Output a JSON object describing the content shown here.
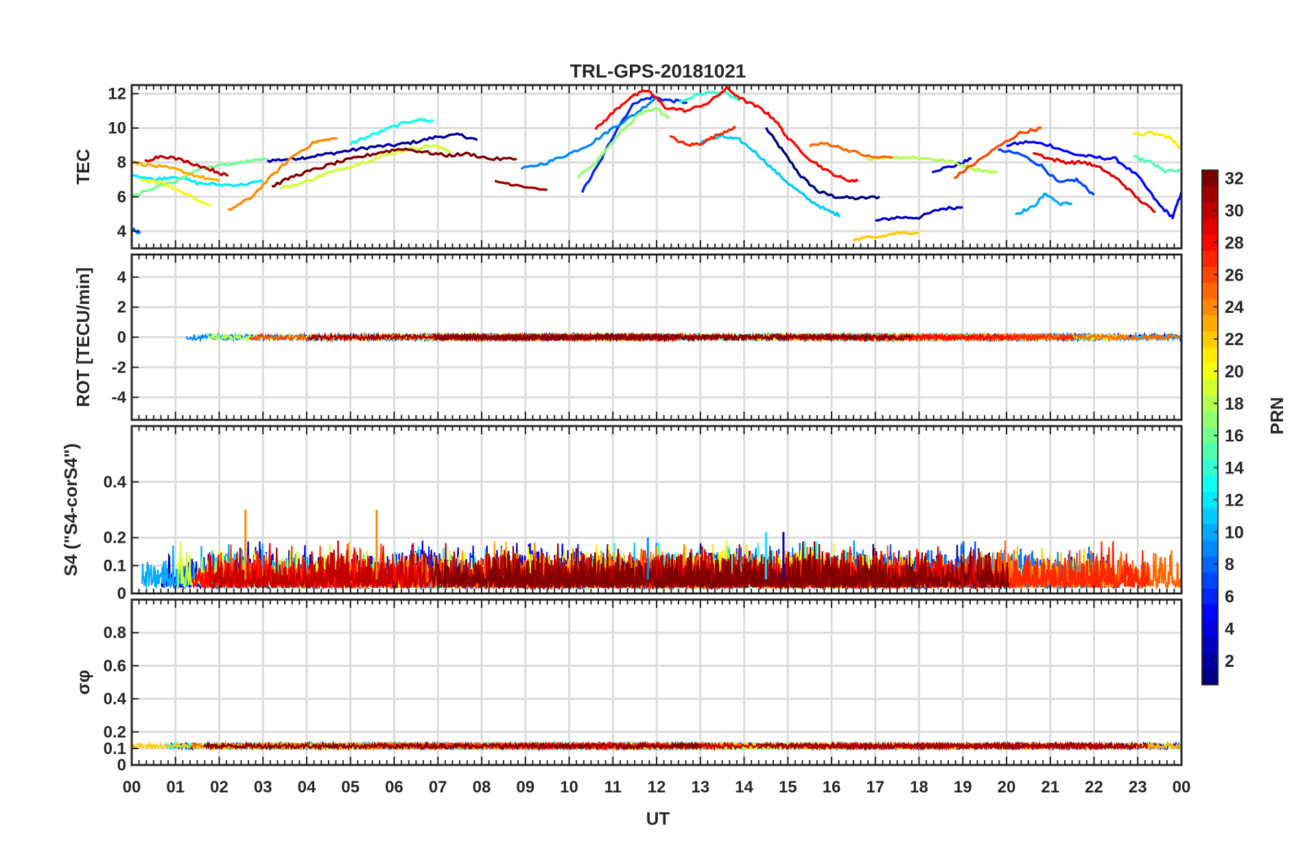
{
  "chart_data": {
    "type": "line",
    "title": "TRL-GPS-20181021",
    "xlabel": "UT",
    "x_ticks": [
      "00",
      "01",
      "02",
      "03",
      "04",
      "05",
      "06",
      "07",
      "08",
      "09",
      "10",
      "11",
      "12",
      "13",
      "14",
      "15",
      "16",
      "17",
      "18",
      "19",
      "20",
      "21",
      "22",
      "23",
      "00"
    ],
    "xlim": [
      0,
      24
    ],
    "grid": true,
    "colorbar": {
      "label": "PRN",
      "range": [
        1,
        32
      ],
      "ticks": [
        "2",
        "4",
        "6",
        "8",
        "10",
        "12",
        "14",
        "16",
        "18",
        "20",
        "22",
        "24",
        "26",
        "28",
        "30",
        "32"
      ],
      "colormap": "jet"
    },
    "panels": [
      {
        "name": "tec",
        "ylabel": "TEC",
        "ylim": [
          3,
          12.5
        ],
        "y_ticks": [
          "4",
          "6",
          "8",
          "10",
          "12"
        ],
        "series": [
          {
            "prn": 1,
            "x": [
              14.5,
              14.9,
              15.3,
              15.7,
              16.1,
              16.6,
              17.1
            ],
            "y": [
              10,
              8.6,
              7.2,
              6.3,
              6.0,
              5.9,
              6.0
            ]
          },
          {
            "prn": 2,
            "x": [
              3.1,
              3.6,
              4.0,
              4.5,
              5.0,
              5.5,
              6.0,
              6.5,
              7.0,
              7.5,
              7.9
            ],
            "y": [
              8.1,
              8.2,
              8.3,
              8.5,
              8.7,
              8.9,
              9.0,
              9.2,
              9.5,
              9.6,
              9.3
            ]
          },
          {
            "prn": 3,
            "x": [
              17.0,
              17.5,
              18.0,
              18.5,
              19.0
            ],
            "y": [
              4.6,
              4.8,
              4.8,
              5.3,
              5.4
            ]
          },
          {
            "prn": 4,
            "x": [
              18.3,
              18.8,
              19.2
            ],
            "y": [
              7.5,
              7.8,
              8.2
            ]
          },
          {
            "prn": 5,
            "x": [
              20.0,
              20.5,
              21.0,
              21.5,
              22.0,
              22.5,
              23.0,
              23.5,
              23.8,
              24.0
            ],
            "y": [
              9.0,
              9.2,
              9.0,
              8.5,
              8.3,
              8.2,
              7.2,
              5.5,
              4.8,
              6.3
            ]
          },
          {
            "prn": 6,
            "x": [
              10.3,
              10.7,
              11.1,
              11.5,
              11.9,
              12.3,
              12.7
            ],
            "y": [
              6.3,
              8.0,
              10.0,
              11.5,
              11.8,
              11.6,
              11.5
            ]
          },
          {
            "prn": 7,
            "x": [
              19.8,
              20.3,
              20.8,
              21.2,
              21.6,
              22.0
            ],
            "y": [
              8.7,
              8.5,
              7.8,
              6.8,
              7.0,
              6.1
            ]
          },
          {
            "prn": 8,
            "x": [
              0.0,
              0.2
            ],
            "y": [
              4.1,
              3.9
            ]
          },
          {
            "prn": 9,
            "x": [
              8.9,
              9.5,
              10.0,
              10.5,
              11.0,
              11.5,
              12.0
            ],
            "y": [
              7.6,
              8.0,
              8.5,
              9.1,
              10.0,
              10.8,
              11.8
            ]
          },
          {
            "prn": 10,
            "x": [
              20.2,
              20.6,
              20.9,
              21.2,
              21.5
            ],
            "y": [
              5.0,
              5.4,
              6.2,
              5.6,
              5.6
            ]
          },
          {
            "prn": 11,
            "x": [
              13.0,
              13.5,
              13.9,
              14.3,
              14.7,
              15.1,
              15.5,
              15.9,
              16.2
            ],
            "y": [
              9.2,
              9.5,
              9.3,
              8.5,
              7.5,
              6.6,
              5.8,
              5.2,
              4.9
            ]
          },
          {
            "prn": 12,
            "x": [
              0.0,
              0.5,
              1.0,
              1.5,
              2.0,
              2.5,
              3.0
            ],
            "y": [
              7.3,
              7.0,
              7.2,
              6.8,
              6.7,
              6.7,
              6.9
            ]
          },
          {
            "prn": 13,
            "x": [
              5.0,
              5.5,
              6.0,
              6.5,
              6.9
            ],
            "y": [
              9.1,
              9.6,
              10.1,
              10.5,
              10.4
            ]
          },
          {
            "prn": 14,
            "x": [
              12.5,
              13.0,
              13.5,
              13.9
            ],
            "y": [
              11.5,
              12.0,
              12.1,
              11.6
            ]
          },
          {
            "prn": 15,
            "x": [
              22.9,
              23.3,
              23.6,
              24.0
            ],
            "y": [
              8.3,
              8.0,
              7.5,
              7.5
            ]
          },
          {
            "prn": 16,
            "x": [
              0.0,
              0.5,
              1.0,
              1.5,
              2.0,
              2.5,
              3.1
            ],
            "y": [
              6.0,
              6.5,
              6.9,
              7.6,
              7.8,
              8.0,
              8.2
            ]
          },
          {
            "prn": 17,
            "x": [
              10.2,
              10.7,
              11.2,
              11.6,
              12.0,
              12.3
            ],
            "y": [
              7.1,
              8.3,
              9.8,
              10.8,
              11.1,
              10.6
            ]
          },
          {
            "prn": 18,
            "x": [
              16.8,
              17.3,
              17.8,
              18.3,
              18.8,
              19.3,
              19.8
            ],
            "y": [
              8.2,
              8.3,
              8.3,
              8.2,
              8.0,
              7.6,
              7.4
            ]
          },
          {
            "prn": 19,
            "x": [
              3.4,
              3.9,
              4.4,
              4.9,
              5.4,
              5.9,
              6.4,
              6.9,
              7.3
            ],
            "y": [
              6.5,
              6.8,
              7.3,
              7.7,
              8.1,
              8.5,
              8.8,
              9.0,
              8.6
            ]
          },
          {
            "prn": 20,
            "x": [
              0.2,
              0.7,
              1.2,
              1.8
            ],
            "y": [
              7.0,
              6.8,
              6.2,
              5.5
            ]
          },
          {
            "prn": 21,
            "x": [
              22.9,
              23.3,
              23.7,
              24.0
            ],
            "y": [
              9.6,
              9.7,
              9.5,
              8.8
            ]
          },
          {
            "prn": 22,
            "x": [
              16.5,
              17.0,
              17.5,
              18.0
            ],
            "y": [
              3.5,
              3.7,
              3.9,
              3.9
            ]
          },
          {
            "prn": 23,
            "x": [
              0.0,
              0.5,
              1.0,
              1.5,
              2.0
            ],
            "y": [
              8.0,
              7.8,
              7.6,
              7.2,
              6.9
            ]
          },
          {
            "prn": 24,
            "x": [
              2.2,
              2.7,
              3.2,
              3.7,
              4.2,
              4.7
            ],
            "y": [
              5.2,
              5.9,
              7.2,
              8.4,
              9.2,
              9.4
            ]
          },
          {
            "prn": 25,
            "x": [
              15.5,
              15.9,
              16.4,
              16.9,
              17.4
            ],
            "y": [
              9.0,
              9.1,
              8.7,
              8.3,
              8.3
            ]
          },
          {
            "prn": 26,
            "x": [
              18.8,
              19.3,
              19.8,
              20.3,
              20.8
            ],
            "y": [
              7.1,
              8.0,
              8.9,
              9.7,
              10.0
            ]
          },
          {
            "prn": 27,
            "x": [
              12.3,
              12.7,
              13.0,
              13.4,
              13.8
            ],
            "y": [
              9.5,
              9.0,
              9.1,
              9.6,
              10.1
            ]
          },
          {
            "prn": 28,
            "x": [
              10.6,
              11.0,
              11.4,
              11.8,
              12.2,
              12.7,
              13.2,
              13.6,
              14.0,
              14.4,
              14.7,
              15.0,
              15.5,
              15.9,
              16.3,
              16.6
            ],
            "y": [
              9.9,
              10.9,
              11.8,
              12.2,
              11.2,
              11.0,
              11.5,
              12.3,
              11.6,
              11.1,
              10.5,
              9.4,
              8.2,
              7.5,
              7.0,
              6.9
            ]
          },
          {
            "prn": 29,
            "x": [
              20.6,
              21.0,
              21.4,
              21.8,
              22.2,
              22.6,
              23.0,
              23.4
            ],
            "y": [
              8.6,
              8.2,
              8.0,
              8.0,
              7.6,
              6.9,
              5.9,
              5.1
            ]
          },
          {
            "prn": 30,
            "x": [
              0.3,
              0.7,
              1.2,
              1.8,
              2.2
            ],
            "y": [
              8.1,
              8.4,
              8.1,
              7.6,
              7.2
            ]
          },
          {
            "prn": 31,
            "x": [
              8.3,
              8.8,
              9.5
            ],
            "y": [
              6.9,
              6.7,
              6.4
            ]
          },
          {
            "prn": 32,
            "x": [
              3.2,
              3.7,
              4.2,
              4.7,
              5.2,
              5.7,
              6.2,
              6.7,
              7.2,
              7.7,
              8.2,
              8.8
            ],
            "y": [
              6.6,
              7.2,
              7.6,
              8.0,
              8.3,
              8.6,
              8.8,
              8.6,
              8.4,
              8.5,
              8.2,
              8.2
            ]
          }
        ]
      },
      {
        "name": "rot",
        "ylabel": "ROT [TECU/min]",
        "ylim": [
          -5.5,
          5.5
        ],
        "y_ticks": [
          "-4",
          "-2",
          "0",
          "2",
          "4"
        ],
        "approx_value_range": [
          -0.3,
          0.3
        ]
      },
      {
        "name": "s4",
        "ylabel": "S4 (\"S4-corS4\")",
        "ylim": [
          0,
          0.6
        ],
        "y_ticks": [
          "0",
          "0.1",
          "0.2",
          "0.4"
        ],
        "typical_range": [
          0.02,
          0.14
        ],
        "peaks": [
          {
            "x": 2.6,
            "y": 0.3,
            "prn": 24
          },
          {
            "x": 5.6,
            "y": 0.3,
            "prn": 24
          },
          {
            "x": 11.8,
            "y": 0.2,
            "prn": 9
          },
          {
            "x": 14.9,
            "y": 0.22,
            "prn": 3
          },
          {
            "x": 14.5,
            "y": 0.22,
            "prn": 12
          }
        ]
      },
      {
        "name": "sigma_phi",
        "ylabel": "σφ",
        "ylim": [
          0,
          1
        ],
        "y_ticks": [
          "0",
          "0.1",
          "0.2",
          "0.4",
          "0.6",
          "0.8"
        ],
        "typical_range": [
          0.1,
          0.15
        ]
      }
    ]
  }
}
